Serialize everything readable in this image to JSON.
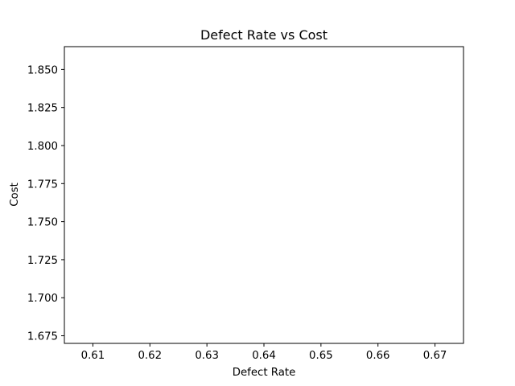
{
  "chart_data": {
    "type": "scatter",
    "title": "Defect Rate vs Cost",
    "xlabel": "Defect Rate",
    "ylabel": "Cost",
    "xlim": [
      0.605,
      0.675
    ],
    "ylim": [
      1.67,
      1.865
    ],
    "x_ticks": [
      "0.61",
      "0.62",
      "0.63",
      "0.64",
      "0.65",
      "0.66",
      "0.67"
    ],
    "y_ticks": [
      "1.675",
      "1.700",
      "1.725",
      "1.750",
      "1.775",
      "1.800",
      "1.825",
      "1.850"
    ],
    "grid": false,
    "series": [],
    "colors": {
      "axis": "#000000",
      "background": "#ffffff"
    }
  }
}
